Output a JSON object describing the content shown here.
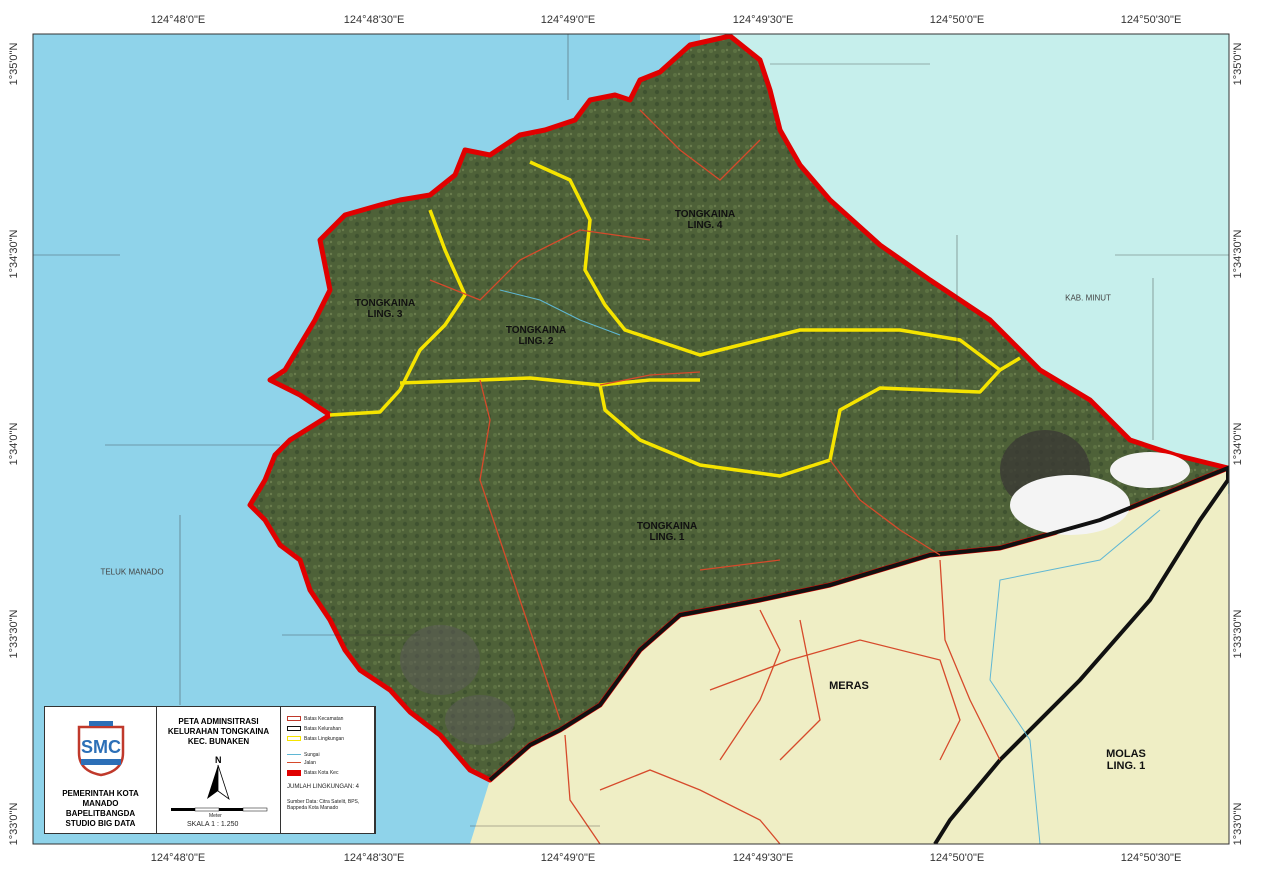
{
  "map": {
    "title_lines": [
      "PETA ADMINSITRASI",
      "KELURAHAN TONGKAINA",
      "KEC. BUNAKEN"
    ],
    "organization_lines": [
      "PEMERINTAH KOTA MANADO",
      "BAPELITBANGDA",
      "STUDIO BIG DATA"
    ],
    "north_label": "N",
    "scale_text": "SKALA  1 : 1.250",
    "scale_unit": "Meter",
    "legend_items": [
      {
        "label": "Batas Kecamatan",
        "color": "#c0392b"
      },
      {
        "label": "Batas Kelurahan",
        "color": "#111111"
      },
      {
        "label": "Batas Lingkungan",
        "color": "#f5e400"
      },
      {
        "label": "Sungai",
        "color": "#5fb7d4"
      },
      {
        "label": "Jalan",
        "color": "#d64a2b"
      },
      {
        "label": "Batas Kota Kec",
        "color": "#e00000"
      },
      {
        "label": "JUMLAH LINGKUNGAN: 4",
        "color": ""
      }
    ],
    "legend_sources": "Sumber Data: Citra Satelit, BPS, Bappeda Kota Manado",
    "lon_labels": [
      "124°48'0\"E",
      "124°48'30\"E",
      "124°49'0\"E",
      "124°49'30\"E",
      "124°50'0\"E",
      "124°50'30\"E"
    ],
    "lat_labels": [
      "1°35'0\"N",
      "1°34'30\"N",
      "1°34'0\"N",
      "1°33'30\"N",
      "1°33'0\"N"
    ],
    "areas": {
      "ling1": "TONGKAINA\nLING. 1",
      "ling2": "TONGKAINA\nLING. 2",
      "ling3": "TONGKAINA\nLING. 3",
      "ling4": "TONGKAINA\nLING. 4",
      "meras": "MERAS",
      "molas": "MOLAS\nLING. 1",
      "teluk": "TELUK MANADO",
      "minut": "KAB. MINUT"
    },
    "colors": {
      "sea_west": "#8fd3ea",
      "sea_east": "#c6efec",
      "land_veg": "#4e6138",
      "neighbor": "#efeec5",
      "coast": "#e00000",
      "boundary_kel": "#111111",
      "boundary_ling": "#f5e400",
      "road": "#d64a2b",
      "river": "#5fb7d4"
    }
  }
}
